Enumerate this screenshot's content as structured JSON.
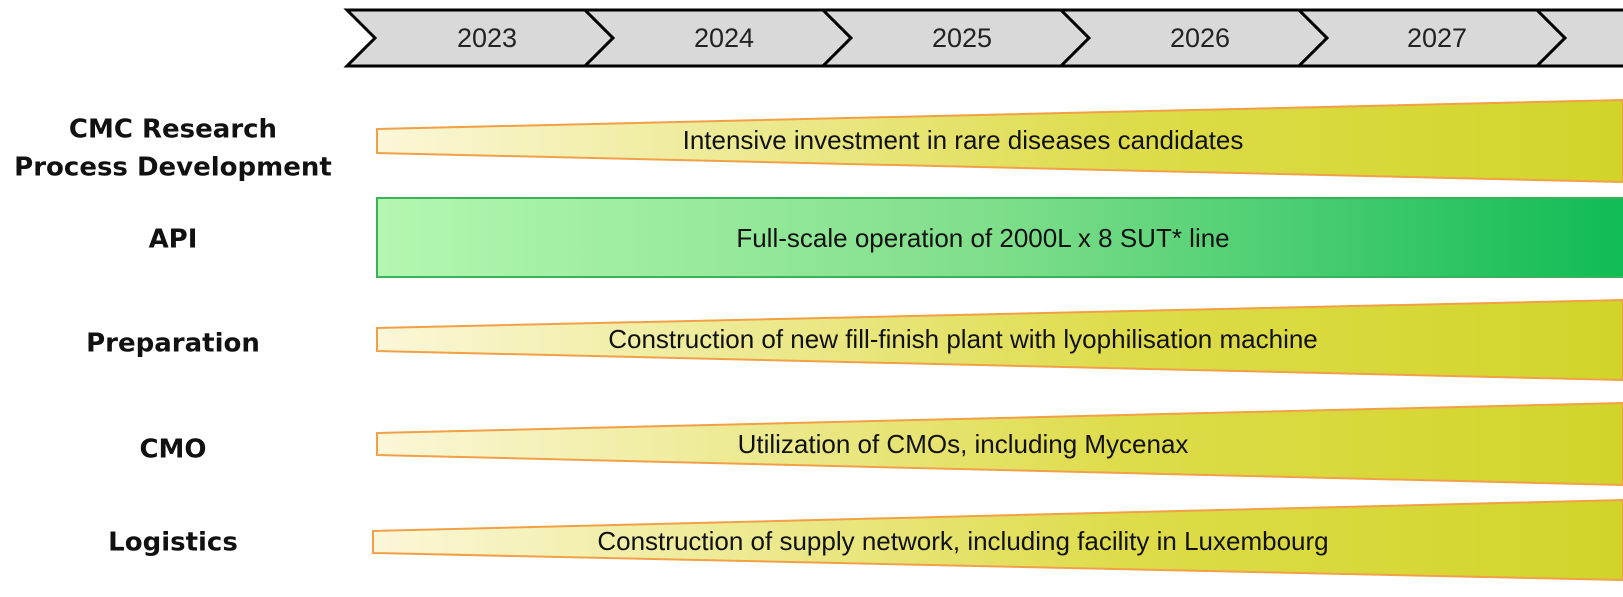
{
  "timeline": {
    "years": [
      "2023",
      "2024",
      "2025",
      "2026",
      "2027"
    ]
  },
  "rows": [
    {
      "label": [
        "CMC Research",
        "Process Development"
      ],
      "text": "Intensive investment in rare diseases candidates"
    },
    {
      "label": [
        "API"
      ],
      "text": "Full-scale operation of 2000L x 8 SUT* line"
    },
    {
      "label": [
        "Preparation"
      ],
      "text": "Construction of new fill-finish plant with lyophilisation machine"
    },
    {
      "label": [
        "CMO"
      ],
      "text": "Utilization of CMOs, including Mycenax"
    },
    {
      "label": [
        "Logistics"
      ],
      "text": "Construction of supply network, including facility in Luxembourg"
    }
  ]
}
